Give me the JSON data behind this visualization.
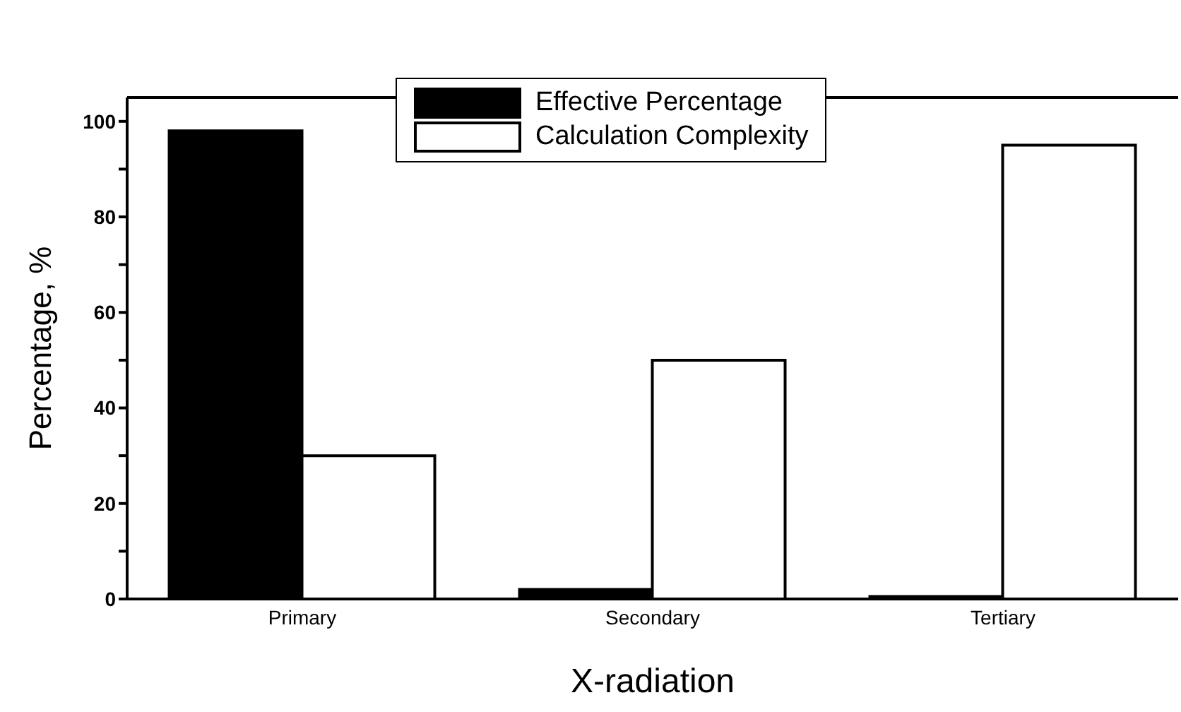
{
  "chart_data": {
    "type": "bar",
    "xlabel": "X-radiation",
    "ylabel": "Percentage, %",
    "categories": [
      "Primary",
      "Secondary",
      "Tertiary"
    ],
    "series": [
      {
        "name": "Effective Percentage",
        "color": "#000000",
        "values": [
          98,
          2,
          0.5
        ]
      },
      {
        "name": "Calculation Complexity",
        "color": "#ffffff",
        "values": [
          30,
          50,
          95
        ]
      }
    ],
    "ylim": [
      0,
      105
    ],
    "yticks": [
      0,
      {
        "value": 10,
        "label": null
      },
      20,
      {
        "value": 30,
        "label": null
      },
      40,
      {
        "value": 50,
        "label": null
      },
      60,
      {
        "value": 70,
        "label": null
      },
      80,
      {
        "value": 90,
        "label": null
      },
      100
    ],
    "grid": false,
    "legend": "top"
  }
}
